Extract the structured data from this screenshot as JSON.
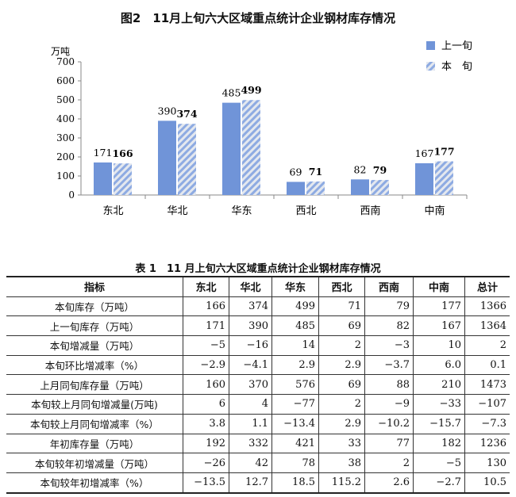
{
  "chart_data": {
    "type": "bar",
    "title": "图2　11月上旬六大区域重点统计企业钢材库存情况",
    "ylabel": "万吨",
    "ylim": [
      0,
      700
    ],
    "yticks": [
      0,
      100,
      200,
      300,
      400,
      500,
      600,
      700
    ],
    "categories": [
      "东北",
      "华北",
      "华东",
      "西北",
      "西南",
      "中南"
    ],
    "series": [
      {
        "name": "上一旬",
        "values": [
          171,
          390,
          485,
          69,
          82,
          167
        ],
        "color": "#7094d8"
      },
      {
        "name": "本　旬",
        "values": [
          166,
          374,
          499,
          71,
          79,
          177
        ],
        "color": "#a9bfe8",
        "pattern": "hatched"
      }
    ],
    "legend": "top-right",
    "grid": false
  },
  "table": {
    "title": "表 1　11 月上旬六大区域重点统计企业钢材库存情况",
    "headers": [
      "指标",
      "东北",
      "华北",
      "华东",
      "西北",
      "西南",
      "中南",
      "总计"
    ],
    "rows": [
      [
        "本旬库存（万吨）",
        "166",
        "374",
        "499",
        "71",
        "79",
        "177",
        "1366"
      ],
      [
        "上一旬库存（万吨）",
        "171",
        "390",
        "485",
        "69",
        "82",
        "167",
        "1364"
      ],
      [
        "本旬增减量（万吨）",
        "−5",
        "−16",
        "14",
        "2",
        "−3",
        "10",
        "2"
      ],
      [
        "本旬环比增减率（%）",
        "−2.9",
        "−4.1",
        "2.9",
        "2.9",
        "−3.7",
        "6.0",
        "0.1"
      ],
      [
        "上月同旬库存量（万吨）",
        "160",
        "370",
        "576",
        "69",
        "88",
        "210",
        "1473"
      ],
      [
        "本旬较上月同旬增减量(万吨)",
        "6",
        "4",
        "−77",
        "2",
        "−9",
        "−33",
        "−107"
      ],
      [
        "本旬较上月同旬增减率（%）",
        "3.8",
        "1.1",
        "−13.4",
        "2.9",
        "−10.2",
        "−15.7",
        "−7.3"
      ],
      [
        "年初库存量（万吨）",
        "192",
        "332",
        "421",
        "33",
        "77",
        "182",
        "1236"
      ],
      [
        "本旬较年初增减量（万吨）",
        "−26",
        "42",
        "78",
        "38",
        "2",
        "−5",
        "130"
      ],
      [
        "本旬较年初增减率（%）",
        "−13.5",
        "12.7",
        "18.5",
        "115.2",
        "2.6",
        "−2.7",
        "10.5"
      ]
    ]
  }
}
